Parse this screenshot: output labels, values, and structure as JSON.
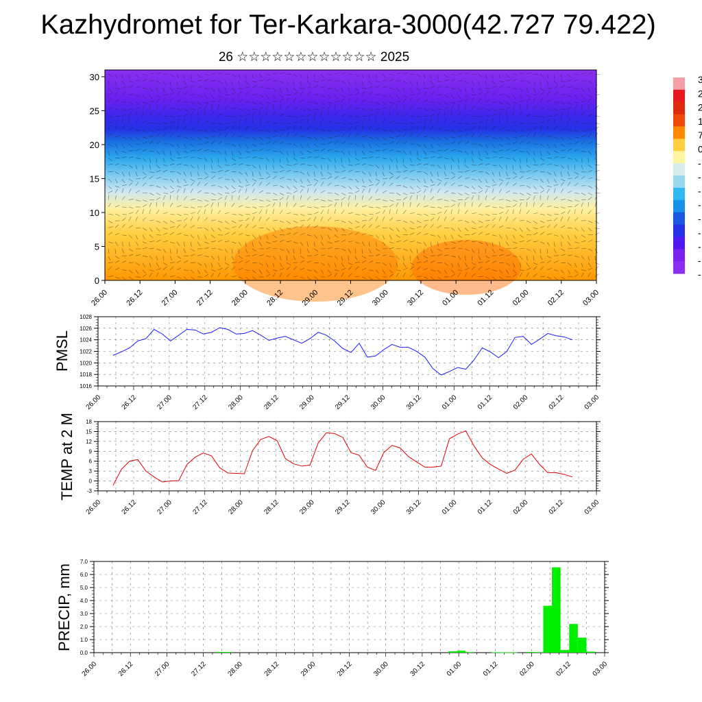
{
  "title": "Kazhydromet for Ter-Karkara-3000(42.727 79.422)",
  "subtitle": "26 ☆☆☆☆☆☆☆☆☆☆☆☆ 2025",
  "time_ticks": [
    "26.00",
    "26.12",
    "27.00",
    "27.12",
    "28.00",
    "28.12",
    "29.00",
    "29.12",
    "30.00",
    "30.12",
    "01.00",
    "01.12",
    "02.00",
    "02.12",
    "03.00"
  ],
  "colors": {
    "pmsl_line": "#1a1aff",
    "temp_line": "#e00000",
    "precip_bar": "#00ee00"
  },
  "chart_data": [
    {
      "type": "heatmap",
      "name": "cross-section",
      "yticks": [
        0,
        5,
        10,
        15,
        20,
        25,
        30
      ],
      "ylim": [
        0,
        31
      ],
      "colorbar_labels": [
        "3",
        "2",
        "2",
        "1",
        "7",
        "0",
        "-",
        "-",
        "-",
        "-",
        "-",
        "-",
        "-",
        "-",
        "-"
      ],
      "colorbar_colors": [
        "#f2a0a6",
        "#e81820",
        "#e02a10",
        "#f04a0a",
        "#ff8a00",
        "#ffcf40",
        "#fff4a0",
        "#d8ecf0",
        "#9ad8f0",
        "#30b8f0",
        "#1890e8",
        "#1a58e0",
        "#2830e8",
        "#5018f0",
        "#7a20ee",
        "#8a30f0"
      ]
    },
    {
      "type": "line",
      "ylabel": "PMSL",
      "ylim": [
        1016,
        1028
      ],
      "yticks": [
        "1016",
        "1018",
        "1020",
        "1022",
        "1024",
        "1026",
        "1028"
      ],
      "x": [
        0,
        3,
        6,
        9,
        12,
        15,
        18,
        21,
        24,
        27,
        30,
        33,
        36,
        39,
        42,
        45,
        48,
        51,
        54,
        57,
        60,
        63,
        66,
        69,
        72,
        75,
        78,
        81,
        84,
        87,
        90,
        93,
        96,
        99,
        102,
        105,
        108,
        111,
        114,
        117,
        120,
        123,
        126,
        129,
        132,
        135,
        138,
        141,
        144,
        147,
        150,
        153,
        156,
        159,
        162,
        165,
        168
      ],
      "series": [
        {
          "values": [
            1021.3,
            1021.9,
            1022.6,
            1023.8,
            1024.2,
            1025.8,
            1025.0,
            1023.8,
            1024.8,
            1025.8,
            1025.7,
            1025.0,
            1025.3,
            1026.1,
            1025.8,
            1025.0,
            1025.1,
            1025.6,
            1024.8,
            1023.9,
            1024.3,
            1024.6,
            1024.0,
            1023.4,
            1024.2,
            1025.3,
            1024.8,
            1023.8,
            1022.5,
            1021.8,
            1023.4,
            1021.0,
            1021.2,
            1022.3,
            1023.2,
            1022.7,
            1022.7,
            1022.0,
            1021.0,
            1019.0,
            1017.9,
            1018.5,
            1019.2,
            1018.9,
            1020.5,
            1022.6,
            1021.9,
            1020.9,
            1022.0,
            1024.4,
            1024.6,
            1023.2,
            1024.1,
            1025.1,
            1024.7,
            1024.5,
            1024.0
          ]
        }
      ]
    },
    {
      "type": "line",
      "ylabel": "TEMP at 2 M",
      "ylim": [
        -3,
        18
      ],
      "yticks": [
        "-3",
        "0",
        "3",
        "6",
        "9",
        "12",
        "15",
        "18"
      ],
      "x": [
        0,
        3,
        6,
        9,
        12,
        15,
        18,
        21,
        24,
        27,
        30,
        33,
        36,
        39,
        42,
        45,
        48,
        51,
        54,
        57,
        60,
        63,
        66,
        69,
        72,
        75,
        78,
        81,
        84,
        87,
        90,
        93,
        96,
        99,
        102,
        105,
        108,
        111,
        114,
        117,
        120,
        123,
        126,
        129,
        132,
        135,
        138,
        141,
        144,
        147,
        150,
        153,
        156,
        159,
        162,
        165,
        168
      ],
      "series": [
        {
          "values": [
            -1.3,
            3.5,
            6.0,
            6.5,
            3.0,
            1.2,
            -0.3,
            0.0,
            0.1,
            5.0,
            7.2,
            8.5,
            7.6,
            4.0,
            2.4,
            2.3,
            2.2,
            9.2,
            12.6,
            13.5,
            12.2,
            6.8,
            5.2,
            4.5,
            4.8,
            11.5,
            14.6,
            14.4,
            13.2,
            8.6,
            7.8,
            4.2,
            3.2,
            8.6,
            10.8,
            10.0,
            7.4,
            5.8,
            4.2,
            4.2,
            4.5,
            12.8,
            14.2,
            15.2,
            10.6,
            7.0,
            5.0,
            3.6,
            2.3,
            3.3,
            6.6,
            8.2,
            5.0,
            2.5,
            2.5,
            2.0,
            1.2
          ]
        }
      ]
    },
    {
      "type": "bar",
      "ylabel": "PRECIP, mm",
      "ylim": [
        0,
        7
      ],
      "yticks": [
        "0.0",
        "1.0",
        "2.0",
        "3.0",
        "4.0",
        "5.0",
        "6.0",
        "7.0"
      ],
      "x": [
        36,
        39,
        117,
        120,
        123,
        132,
        135,
        138,
        144,
        147,
        150,
        153,
        156,
        159,
        162,
        165
      ],
      "values": [
        0.05,
        0.05,
        0.1,
        0.15,
        0.04,
        0.03,
        0.02,
        0.02,
        0.05,
        0.04,
        3.6,
        6.55,
        0.2,
        2.2,
        1.15,
        0.08
      ]
    }
  ]
}
